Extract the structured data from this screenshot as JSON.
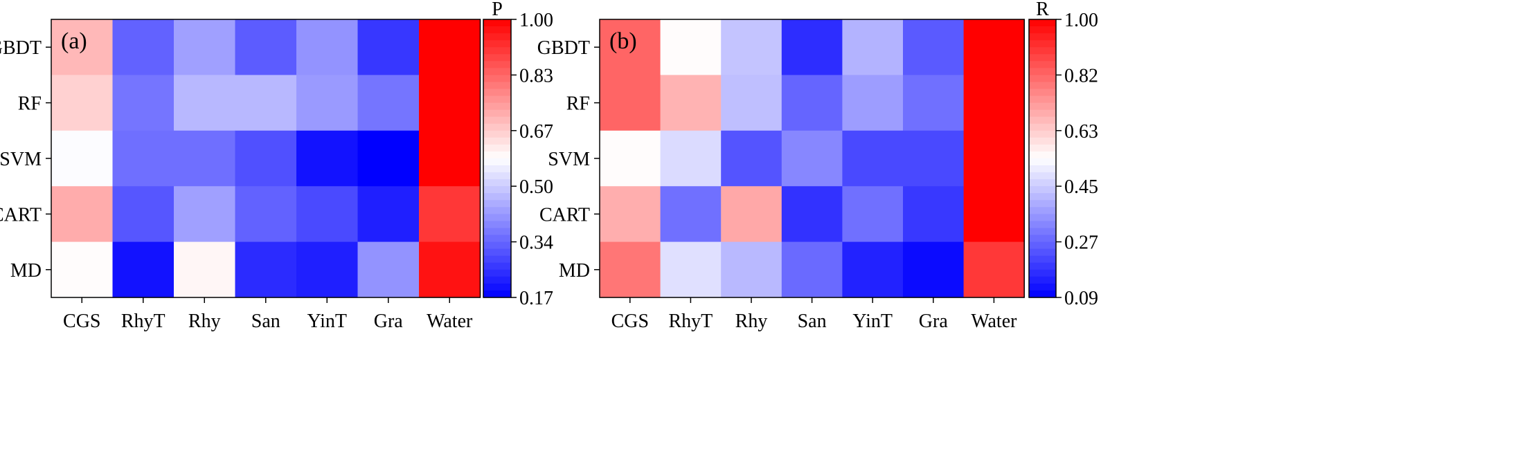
{
  "chart_data": [
    {
      "type": "heatmap",
      "panel_label": "(a)",
      "colorbar_label": "P",
      "rows": [
        "GBDT",
        "RF",
        "SVM",
        "CART",
        "MD"
      ],
      "columns": [
        "CGS",
        "RhyT",
        "Rhy",
        "San",
        "YinT",
        "Gra",
        "Water"
      ],
      "vmin": 0.17,
      "vmax": 1.0,
      "colorbar_ticks": [
        "1.00",
        "0.83",
        "0.67",
        "0.50",
        "0.34",
        "0.17"
      ],
      "values": [
        [
          0.7,
          0.33,
          0.43,
          0.32,
          0.41,
          0.26,
          1.0
        ],
        [
          0.66,
          0.36,
          0.47,
          0.47,
          0.42,
          0.36,
          1.0
        ],
        [
          0.58,
          0.35,
          0.35,
          0.3,
          0.2,
          0.17,
          1.0
        ],
        [
          0.72,
          0.31,
          0.43,
          0.33,
          0.29,
          0.22,
          0.91
        ],
        [
          0.59,
          0.2,
          0.6,
          0.24,
          0.22,
          0.41,
          0.97
        ]
      ]
    },
    {
      "type": "heatmap",
      "panel_label": "(b)",
      "colorbar_label": "R",
      "rows": [
        "GBDT",
        "RF",
        "SVM",
        "CART",
        "MD"
      ],
      "columns": [
        "CGS",
        "RhyT",
        "Rhy",
        "San",
        "YinT",
        "Gra",
        "Water"
      ],
      "vmin": 0.09,
      "vmax": 1.0,
      "colorbar_ticks": [
        "1.00",
        "0.82",
        "0.63",
        "0.45",
        "0.27",
        "0.09"
      ],
      "values": [
        [
          0.82,
          0.55,
          0.44,
          0.17,
          0.41,
          0.25,
          1.0
        ],
        [
          0.82,
          0.68,
          0.43,
          0.27,
          0.37,
          0.29,
          1.0
        ],
        [
          0.55,
          0.48,
          0.24,
          0.33,
          0.22,
          0.22,
          1.0
        ],
        [
          0.69,
          0.29,
          0.7,
          0.18,
          0.29,
          0.19,
          1.0
        ],
        [
          0.79,
          0.49,
          0.42,
          0.28,
          0.15,
          0.11,
          0.9
        ]
      ]
    }
  ]
}
